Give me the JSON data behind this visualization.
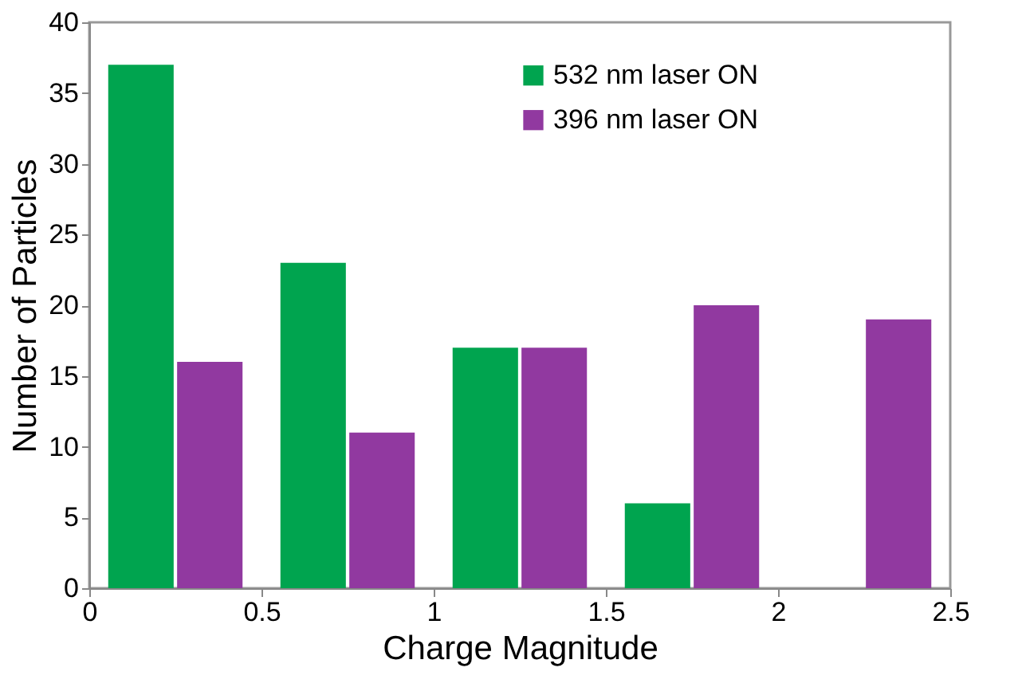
{
  "chart_data": {
    "type": "bar",
    "xlabel": "Charge Magnitude",
    "ylabel": "Number of Particles",
    "series": [
      {
        "name": "532 nm laser ON",
        "color": "#00a44f",
        "x": [
          0.15,
          0.65,
          1.15,
          1.65
        ],
        "values": [
          37,
          23,
          17,
          6
        ]
      },
      {
        "name": "396 nm laser ON",
        "color": "#9139a0",
        "x": [
          0.35,
          0.85,
          1.35,
          1.85,
          2.35
        ],
        "values": [
          16,
          11,
          17,
          20,
          19
        ]
      }
    ],
    "xlim": [
      0,
      2.5
    ],
    "xticks": [
      0,
      0.5,
      1,
      1.5,
      2,
      2.5
    ],
    "ylim": [
      0,
      40
    ],
    "yticks": [
      0,
      5,
      10,
      15,
      20,
      25,
      30,
      35,
      40
    ],
    "grid": false,
    "legend": "top right"
  }
}
